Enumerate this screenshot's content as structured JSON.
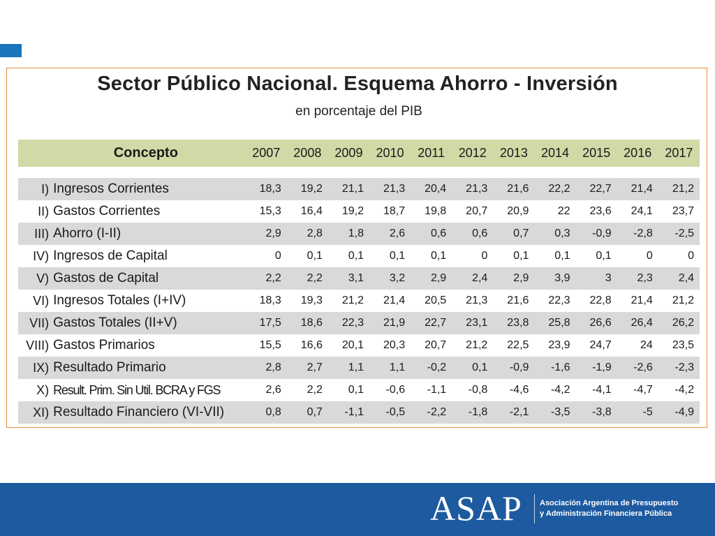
{
  "title": "Sector Público Nacional. Esquema Ahorro - Inversión",
  "subtitle": "en porcentaje del PIB",
  "table": {
    "concept_header": "Concepto",
    "years": [
      "2007",
      "2008",
      "2009",
      "2010",
      "2011",
      "2012",
      "2013",
      "2014",
      "2015",
      "2016",
      "2017"
    ],
    "rows": [
      {
        "num": "I)",
        "label": "Ingresos Corrientes",
        "values": [
          "18,3",
          "19,2",
          "21,1",
          "21,3",
          "20,4",
          "21,3",
          "21,6",
          "22,2",
          "22,7",
          "21,4",
          "21,2"
        ]
      },
      {
        "num": "II)",
        "label": "Gastos Corrientes",
        "values": [
          "15,3",
          "16,4",
          "19,2",
          "18,7",
          "19,8",
          "20,7",
          "20,9",
          "22",
          "23,6",
          "24,1",
          "23,7"
        ]
      },
      {
        "num": "III)",
        "label": "Ahorro (I-II)",
        "values": [
          "2,9",
          "2,8",
          "1,8",
          "2,6",
          "0,6",
          "0,6",
          "0,7",
          "0,3",
          "-0,9",
          "-2,8",
          "-2,5"
        ]
      },
      {
        "num": "IV)",
        "label": "Ingresos de Capital",
        "values": [
          "0",
          "0,1",
          "0,1",
          "0,1",
          "0,1",
          "0",
          "0,1",
          "0,1",
          "0,1",
          "0",
          "0"
        ]
      },
      {
        "num": "V)",
        "label": "Gastos de Capital",
        "values": [
          "2,2",
          "2,2",
          "3,1",
          "3,2",
          "2,9",
          "2,4",
          "2,9",
          "3,9",
          "3",
          "2,3",
          "2,4"
        ]
      },
      {
        "num": "VI)",
        "label": "Ingresos Totales (I+IV)",
        "values": [
          "18,3",
          "19,3",
          "21,2",
          "21,4",
          "20,5",
          "21,3",
          "21,6",
          "22,3",
          "22,8",
          "21,4",
          "21,2"
        ]
      },
      {
        "num": "VII)",
        "label": "Gastos Totales (II+V)",
        "values": [
          "17,5",
          "18,6",
          "22,3",
          "21,9",
          "22,7",
          "23,1",
          "23,8",
          "25,8",
          "26,6",
          "26,4",
          "26,2"
        ]
      },
      {
        "num": "VIII)",
        "label": "Gastos Primarios",
        "values": [
          "15,5",
          "16,6",
          "20,1",
          "20,3",
          "20,7",
          "21,2",
          "22,5",
          "23,9",
          "24,7",
          "24",
          "23,5"
        ]
      },
      {
        "num": "IX)",
        "label": "Resultado Primario",
        "values": [
          "2,8",
          "2,7",
          "1,1",
          "1,1",
          "-0,2",
          "0,1",
          "-0,9",
          "-1,6",
          "-1,9",
          "-2,6",
          "-2,3"
        ]
      },
      {
        "num": "X)",
        "label": "Result. Prim. Sin Util. BCRA y FGS",
        "values": [
          "2,6",
          "2,2",
          "0,1",
          "-0,6",
          "-1,1",
          "-0,8",
          "-4,6",
          "-4,2",
          "-4,1",
          "-4,7",
          "-4,2"
        ]
      },
      {
        "num": "XI)",
        "label": "Resultado Financiero (VI-VII)",
        "values": [
          "0,8",
          "0,7",
          "-1,1",
          "-0,5",
          "-2,2",
          "-1,8",
          "-2,1",
          "-3,5",
          "-3,8",
          "-5",
          "-4,9"
        ]
      }
    ]
  },
  "footer": {
    "logo_text": "ASAP",
    "org_line1": "Asociación Argentina de Presupuesto",
    "org_line2": "y Administración Financiera Pública"
  },
  "colors": {
    "header_band": "#d2d9a6",
    "row_shade": "#d9d9d9",
    "frame_border": "#e58a3c",
    "footer_bg": "#1d5aa0",
    "corner_mark": "#1b75bb"
  }
}
